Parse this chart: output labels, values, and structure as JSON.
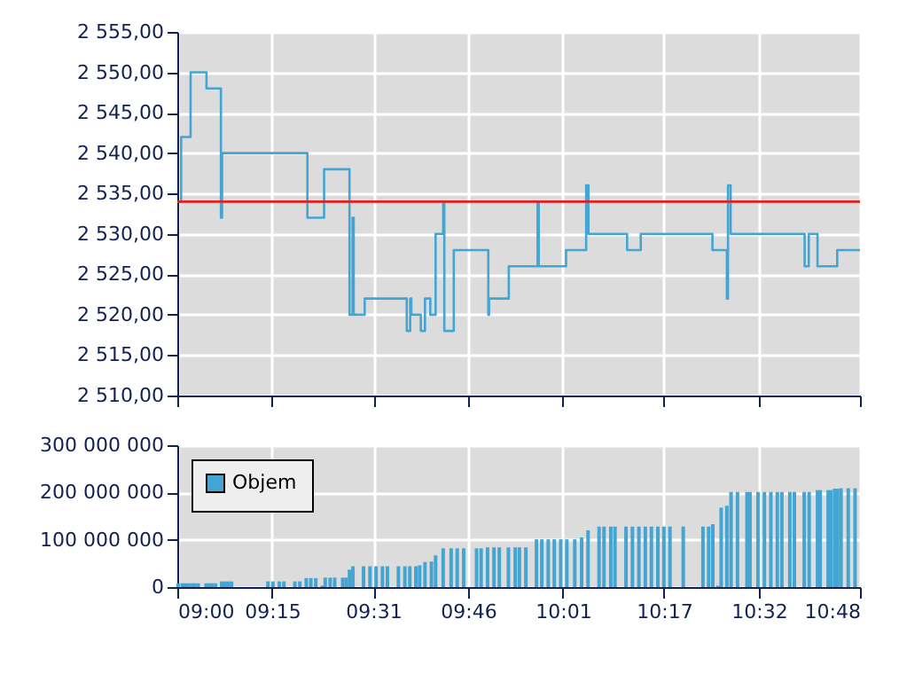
{
  "chart_data": [
    {
      "type": "step",
      "xlim": [
        9.0,
        10.8
      ],
      "xticks": [
        {
          "value": 9.0,
          "label": null
        },
        {
          "value": 9.25,
          "label": null
        },
        {
          "value": 9.5167,
          "label": null
        },
        {
          "value": 9.7667,
          "label": null
        },
        {
          "value": 10.0167,
          "label": null
        },
        {
          "value": 10.2833,
          "label": null
        },
        {
          "value": 10.5333,
          "label": null
        },
        {
          "value": 10.8,
          "label": null
        }
      ],
      "ylim": [
        2510,
        2555
      ],
      "yticks": [
        {
          "value": 2510,
          "label": "2 510,00"
        },
        {
          "value": 2515,
          "label": "2 515,00"
        },
        {
          "value": 2520,
          "label": "2 520,00"
        },
        {
          "value": 2525,
          "label": "2 525,00"
        },
        {
          "value": 2530,
          "label": "2 530,00"
        },
        {
          "value": 2535,
          "label": "2 535,00"
        },
        {
          "value": 2540,
          "label": "2 540,00"
        },
        {
          "value": 2545,
          "label": "2 545,00"
        },
        {
          "value": 2550,
          "label": "2 550,00"
        },
        {
          "value": 2555,
          "label": "2 555,00"
        }
      ],
      "tick_labels": "y",
      "grid": true,
      "series": [
        {
          "color": "#45a5d2",
          "x": [
            9.0,
            9.01,
            9.035,
            9.077,
            9.115,
            9.118,
            9.343,
            9.387,
            9.454,
            9.462,
            9.465,
            9.494,
            9.605,
            9.614,
            9.617,
            9.642,
            9.653,
            9.667,
            9.681,
            9.701,
            9.704,
            9.729,
            9.82,
            9.822,
            9.874,
            9.95,
            9.953,
            10.025,
            10.078,
            10.084,
            10.186,
            10.222,
            10.411,
            10.449,
            10.452,
            10.459,
            10.654,
            10.665,
            10.688,
            10.74,
            10.8
          ],
          "values": [
            2534,
            2542,
            2550,
            2548,
            2532,
            2540,
            2532,
            2538,
            2520,
            2532,
            2520,
            2522,
            2518,
            2522,
            2520,
            2518,
            2522,
            2520,
            2530,
            2534,
            2518,
            2528,
            2520,
            2522,
            2526,
            2534,
            2526,
            2528,
            2536,
            2530,
            2528,
            2530,
            2528,
            2522,
            2536,
            2530,
            2526,
            2530,
            2526,
            2528,
            2528
          ]
        }
      ],
      "ref_lines": [
        {
          "axis": "y",
          "value": 2534,
          "color": "#e02020"
        }
      ]
    },
    {
      "type": "bar",
      "xlim": [
        9.0,
        10.8
      ],
      "xticks": [
        {
          "value": 9.0,
          "label": "09:00"
        },
        {
          "value": 9.25,
          "label": "09:15"
        },
        {
          "value": 9.5167,
          "label": "09:31"
        },
        {
          "value": 9.7667,
          "label": "09:46"
        },
        {
          "value": 10.0167,
          "label": "10:01"
        },
        {
          "value": 10.2833,
          "label": "10:17"
        },
        {
          "value": 10.5333,
          "label": "10:32"
        },
        {
          "value": 10.8,
          "label": "10:48"
        }
      ],
      "ylim": [
        0,
        300000000
      ],
      "yticks": [
        0,
        {
          "value": 100000000,
          "label": "100 000 000"
        },
        {
          "value": 200000000,
          "label": "200 000 000"
        },
        {
          "value": 300000000,
          "label": "300 000 000"
        }
      ],
      "grid": true,
      "legend": "top left",
      "series": [
        {
          "name": "Objem",
          "color": "#45a5d2",
          "x": [
            9.002,
            9.013,
            9.021,
            9.029,
            9.038,
            9.046,
            9.055,
            9.076,
            9.084,
            9.092,
            9.101,
            9.117,
            9.126,
            9.134,
            9.143,
            9.239,
            9.252,
            9.269,
            9.281,
            9.31,
            9.323,
            9.34,
            9.352,
            9.365,
            9.382,
            9.39,
            9.403,
            9.415,
            9.436,
            9.445,
            9.454,
            9.463,
            9.491,
            9.508,
            9.524,
            9.541,
            9.554,
            9.583,
            9.6,
            9.613,
            9.629,
            9.639,
            9.653,
            9.67,
            9.681,
            9.701,
            9.722,
            9.738,
            9.755,
            9.789,
            9.801,
            9.818,
            9.835,
            9.849,
            9.873,
            9.891,
            9.902,
            9.919,
            9.947,
            9.961,
            9.978,
            9.994,
            10.011,
            10.027,
            10.048,
            10.066,
            10.083,
            10.112,
            10.125,
            10.143,
            10.154,
            10.183,
            10.2,
            10.217,
            10.234,
            10.25,
            10.267,
            10.283,
            10.299,
            10.334,
            10.386,
            10.401,
            10.412,
            10.425,
            10.434,
            10.449,
            10.46,
            10.477,
            10.502,
            10.51,
            10.531,
            10.548,
            10.565,
            10.582,
            10.594,
            10.615,
            10.627,
            10.653,
            10.666,
            10.688,
            10.695,
            10.716,
            10.723,
            10.733,
            10.741,
            10.75,
            10.769,
            10.787
          ],
          "values": [
            8000000,
            8000000,
            8000000,
            8000000,
            8000000,
            8000000,
            8000000,
            8000000,
            8000000,
            8000000,
            8000000,
            12000000,
            12000000,
            12000000,
            12000000,
            12000000,
            12000000,
            12000000,
            12000000,
            12000000,
            12000000,
            19000000,
            19000000,
            19000000,
            3000000,
            20000000,
            20000000,
            20000000,
            20000000,
            20000000,
            37000000,
            44000000,
            44000000,
            44000000,
            44000000,
            44000000,
            44000000,
            44000000,
            44000000,
            44000000,
            44000000,
            46000000,
            53000000,
            54000000,
            67000000,
            82000000,
            82000000,
            82000000,
            82000000,
            82000000,
            82000000,
            84000000,
            84000000,
            84000000,
            84000000,
            84000000,
            84000000,
            84000000,
            101000000,
            101000000,
            101000000,
            101000000,
            101000000,
            101000000,
            101000000,
            105000000,
            120000000,
            128000000,
            128000000,
            128000000,
            128000000,
            128000000,
            128000000,
            128000000,
            128000000,
            128000000,
            128000000,
            128000000,
            128000000,
            128000000,
            128000000,
            128000000,
            133000000,
            3000000,
            168000000,
            172000000,
            201000000,
            201000000,
            201000000,
            201000000,
            201000000,
            201000000,
            201000000,
            201000000,
            201000000,
            201000000,
            201000000,
            201000000,
            201000000,
            205000000,
            205000000,
            205000000,
            205000000,
            208000000,
            208000000,
            209000000,
            209000000,
            209000000
          ]
        }
      ]
    }
  ]
}
